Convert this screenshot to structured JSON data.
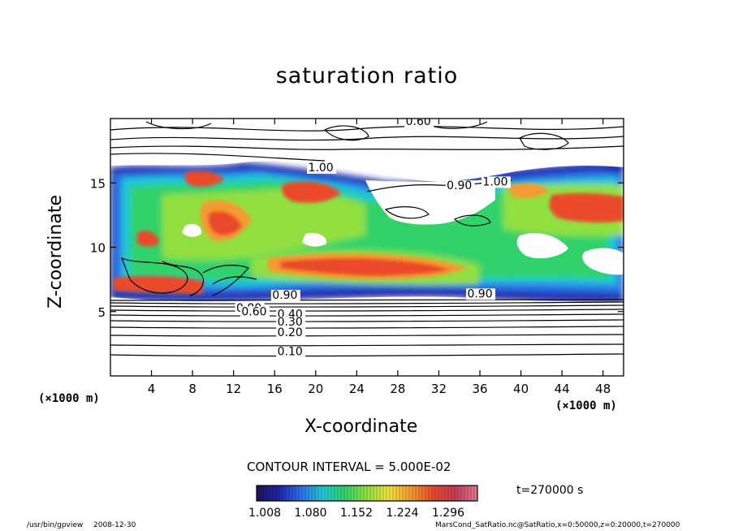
{
  "chart_data": {
    "type": "heatmap",
    "title": "saturation ratio",
    "xlabel": "X-coordinate",
    "ylabel": "Z-coordinate",
    "x_unit_label": "(×1000 m)",
    "xlim": [
      0,
      50
    ],
    "ylim": [
      0,
      20
    ],
    "x_ticks": [
      4,
      8,
      12,
      16,
      20,
      24,
      28,
      32,
      36,
      40,
      44,
      48
    ],
    "y_ticks": [
      5,
      10,
      15
    ],
    "contour_labels": [
      {
        "text": "0.60",
        "x": 30,
        "z": 19.5
      },
      {
        "text": "1.00",
        "x": 20.5,
        "z": 15.9
      },
      {
        "text": "0.90",
        "x": 34,
        "z": 14.5
      },
      {
        "text": "1.00",
        "x": 37.5,
        "z": 14.8
      },
      {
        "text": "0.90",
        "x": 17,
        "z": 6.0
      },
      {
        "text": "0.90",
        "x": 36,
        "z": 6.1
      },
      {
        "text": "0.80",
        "x": 13.5,
        "z": 5.0
      },
      {
        "text": "0.60",
        "x": 14,
        "z": 4.7
      },
      {
        "text": "0.40",
        "x": 17.5,
        "z": 4.5
      },
      {
        "text": "0.30",
        "x": 17.5,
        "z": 3.9
      },
      {
        "text": "0.20",
        "x": 17.5,
        "z": 3.1
      },
      {
        "text": "0.10",
        "x": 17.5,
        "z": 1.6
      }
    ],
    "colorbar": {
      "ticks": [
        "1.008",
        "1.080",
        "1.152",
        "1.224",
        "1.296"
      ],
      "colors": [
        "#1c1460",
        "#1e24a8",
        "#2f6fe6",
        "#1fc8d8",
        "#33d26a",
        "#92e040",
        "#f0e13c",
        "#f59a33",
        "#ea4a2c",
        "#c83b55",
        "#e07a9a"
      ]
    },
    "contour_interval": "CONTOUR INTERVAL = 5.000E-02"
  },
  "footer": {
    "time": "t=270000 s",
    "program": "/usr/bin/gpview",
    "date": "2008-12-30",
    "source": "MarsCond_SatRatio.nc@SatRatio,x=0:50000,z=0:20000,t=270000"
  }
}
